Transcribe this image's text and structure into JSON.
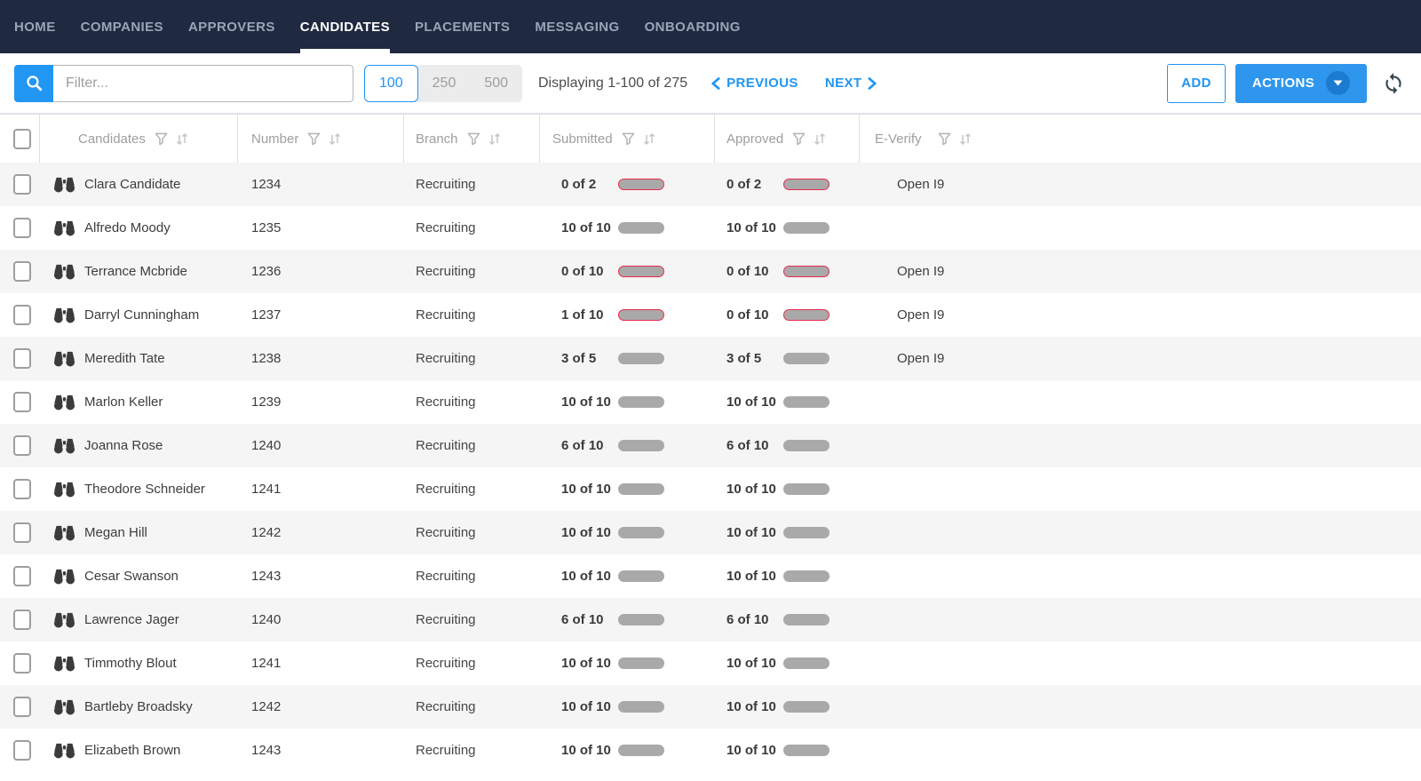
{
  "nav": {
    "items": [
      {
        "label": "HOME",
        "active": false
      },
      {
        "label": "COMPANIES",
        "active": false
      },
      {
        "label": "APPROVERS",
        "active": false
      },
      {
        "label": "CANDIDATES",
        "active": true
      },
      {
        "label": "PLACEMENTS",
        "active": false
      },
      {
        "label": "MESSAGING",
        "active": false
      },
      {
        "label": "ONBOARDING",
        "active": false
      }
    ]
  },
  "toolbar": {
    "filter_placeholder": "Filter...",
    "page_sizes": {
      "selected": "100",
      "options": [
        "100",
        "250",
        "500"
      ]
    },
    "displaying_text": "Displaying 1-100 of 275",
    "previous_label": "PREVIOUS",
    "next_label": "NEXT",
    "add_label": "ADD",
    "actions_label": "ACTIONS"
  },
  "table": {
    "columns": [
      "Candidates",
      "Number",
      "Branch",
      "Submitted",
      "Approved",
      "E-Verify"
    ],
    "rows": [
      {
        "name": "Clara Candidate",
        "number": "1234",
        "branch": "Recruiting",
        "submitted": {
          "text": "0 of 2",
          "pct": 0,
          "variant": "danger"
        },
        "approved": {
          "text": "0 of 2",
          "pct": 0,
          "variant": "danger"
        },
        "everify": "Open I9"
      },
      {
        "name": "Alfredo Moody",
        "number": "1235",
        "branch": "Recruiting",
        "submitted": {
          "text": "10 of 10",
          "pct": 100,
          "variant": "success"
        },
        "approved": {
          "text": "10 of 10",
          "pct": 100,
          "variant": "success"
        },
        "everify": ""
      },
      {
        "name": "Terrance Mcbride",
        "number": "1236",
        "branch": "Recruiting",
        "submitted": {
          "text": "0 of 10",
          "pct": 0,
          "variant": "danger"
        },
        "approved": {
          "text": "0 of 10",
          "pct": 0,
          "variant": "danger"
        },
        "everify": "Open I9"
      },
      {
        "name": "Darryl Cunningham",
        "number": "1237",
        "branch": "Recruiting",
        "submitted": {
          "text": "1 of 10",
          "pct": 10,
          "variant": "danger"
        },
        "approved": {
          "text": "0 of 10",
          "pct": 0,
          "variant": "danger"
        },
        "everify": "Open I9"
      },
      {
        "name": "Meredith Tate",
        "number": "1238",
        "branch": "Recruiting",
        "submitted": {
          "text": "3 of 5",
          "pct": 60,
          "variant": "warning"
        },
        "approved": {
          "text": "3 of 5",
          "pct": 60,
          "variant": "warning"
        },
        "everify": "Open I9"
      },
      {
        "name": "Marlon Keller",
        "number": "1239",
        "branch": "Recruiting",
        "submitted": {
          "text": "10 of 10",
          "pct": 100,
          "variant": "success"
        },
        "approved": {
          "text": "10 of 10",
          "pct": 100,
          "variant": "success"
        },
        "everify": ""
      },
      {
        "name": "Joanna Rose",
        "number": "1240",
        "branch": "Recruiting",
        "submitted": {
          "text": "6 of 10",
          "pct": 60,
          "variant": "warning"
        },
        "approved": {
          "text": "6 of 10",
          "pct": 60,
          "variant": "warning"
        },
        "everify": ""
      },
      {
        "name": "Theodore Schneider",
        "number": "1241",
        "branch": "Recruiting",
        "submitted": {
          "text": "10 of 10",
          "pct": 100,
          "variant": "success"
        },
        "approved": {
          "text": "10 of 10",
          "pct": 100,
          "variant": "success"
        },
        "everify": ""
      },
      {
        "name": "Megan Hill",
        "number": "1242",
        "branch": "Recruiting",
        "submitted": {
          "text": "10 of 10",
          "pct": 100,
          "variant": "success"
        },
        "approved": {
          "text": "10 of 10",
          "pct": 100,
          "variant": "success"
        },
        "everify": ""
      },
      {
        "name": "Cesar Swanson",
        "number": "1243",
        "branch": "Recruiting",
        "submitted": {
          "text": "10 of 10",
          "pct": 100,
          "variant": "success"
        },
        "approved": {
          "text": "10 of 10",
          "pct": 100,
          "variant": "success"
        },
        "everify": ""
      },
      {
        "name": "Lawrence Jager",
        "number": "1240",
        "branch": "Recruiting",
        "submitted": {
          "text": "6 of 10",
          "pct": 60,
          "variant": "warning"
        },
        "approved": {
          "text": "6 of 10",
          "pct": 60,
          "variant": "warning"
        },
        "everify": ""
      },
      {
        "name": "Timmothy Blout",
        "number": "1241",
        "branch": "Recruiting",
        "submitted": {
          "text": "10 of 10",
          "pct": 100,
          "variant": "success"
        },
        "approved": {
          "text": "10 of 10",
          "pct": 100,
          "variant": "success"
        },
        "everify": ""
      },
      {
        "name": "Bartleby Broadsky",
        "number": "1242",
        "branch": "Recruiting",
        "submitted": {
          "text": "10 of 10",
          "pct": 100,
          "variant": "success"
        },
        "approved": {
          "text": "10 of 10",
          "pct": 100,
          "variant": "success"
        },
        "everify": ""
      },
      {
        "name": "Elizabeth Brown",
        "number": "1243",
        "branch": "Recruiting",
        "submitted": {
          "text": "10 of 10",
          "pct": 100,
          "variant": "success"
        },
        "approved": {
          "text": "10 of 10",
          "pct": 100,
          "variant": "success"
        },
        "everify": ""
      }
    ]
  },
  "colors": {
    "nav_bg": "#1f2940",
    "accent_blue": "#2196f3",
    "success_green": "#7dc242",
    "warning_orange": "#fbad26",
    "danger_red": "#e92c4d",
    "bar_track_gray": "#a9a9a9",
    "row_alt_bg": "#f5f5f5"
  }
}
